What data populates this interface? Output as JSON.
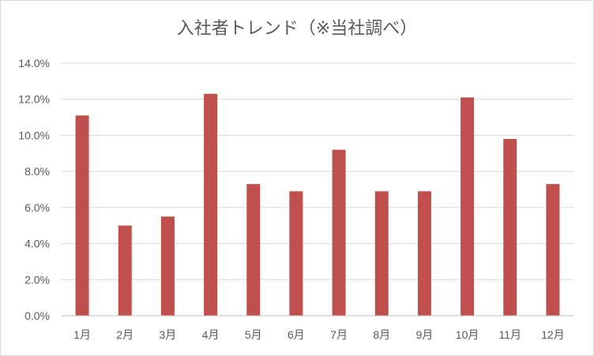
{
  "chart_data": {
    "type": "bar",
    "title": "入社者トレンド（※当社調べ）",
    "categories": [
      "1月",
      "2月",
      "3月",
      "4月",
      "5月",
      "6月",
      "7月",
      "8月",
      "9月",
      "10月",
      "11月",
      "12月"
    ],
    "values": [
      11.1,
      5.0,
      5.5,
      12.3,
      7.3,
      6.9,
      9.2,
      6.9,
      6.9,
      12.1,
      9.8,
      7.3
    ],
    "unit": "%",
    "ylim": [
      0,
      14
    ],
    "yticks": [
      "0.0%",
      "2.0%",
      "4.0%",
      "6.0%",
      "8.0%",
      "10.0%",
      "12.0%",
      "14.0%"
    ],
    "grid": true,
    "legend": "none",
    "colors": {
      "bar": "#c0504d",
      "grid": "#d9d9d9",
      "axis": "#bfbfbf",
      "text": "#595959"
    }
  }
}
